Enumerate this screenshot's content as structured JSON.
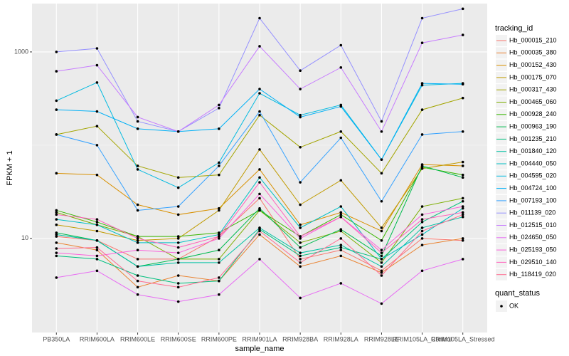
{
  "chart_data": {
    "type": "line",
    "x_label": "sample_name",
    "y_label": "FPKM + 1",
    "log_y": true,
    "grid": true,
    "ylim": [
      0.98,
      3300
    ],
    "yticks": [
      10,
      1000
    ],
    "minor_yticks": [
      100
    ],
    "legend_title": "tracking_id",
    "point_legend_title": "quant_status",
    "point_legend_label": "OK",
    "point_color": "#000000",
    "categories": [
      "PB350LA",
      "RRIM600LA",
      "RRIM600LE",
      "RRIM600SE",
      "RRIM600PE",
      "RRIM901LA",
      "RRIM928BA",
      "RRIM928LA",
      "RRIM928LE",
      "RRIM105LA_Control",
      "RRIM105LA_Stressed"
    ],
    "series": [
      {
        "name": "Hb_000015_210",
        "color": "#F8766D",
        "values": [
          10.5,
          9.5,
          6,
          6,
          10.5,
          27,
          6,
          7.5,
          4.5,
          10,
          9.5
        ]
      },
      {
        "name": "Hb_000035_380",
        "color": "#EA8331",
        "values": [
          9,
          7.5,
          3,
          4,
          3.5,
          11,
          5,
          6.5,
          4.3,
          8.5,
          10
        ]
      },
      {
        "name": "Hb_000152_430",
        "color": "#D89000",
        "values": [
          50,
          48,
          23,
          18,
          21,
          55,
          14,
          19,
          12,
          62,
          60
        ]
      },
      {
        "name": "Hb_000175_070",
        "color": "#C09B00",
        "values": [
          14,
          12,
          9.5,
          10,
          20,
          90,
          23,
          42,
          13,
          56,
          66
        ]
      },
      {
        "name": "Hb_000317_430",
        "color": "#A3A500",
        "values": [
          130,
          160,
          60,
          45,
          48,
          210,
          95,
          140,
          50,
          240,
          320
        ]
      },
      {
        "name": "Hb_000465_060",
        "color": "#7CAE00",
        "values": [
          19,
          14,
          10.5,
          6,
          6,
          20,
          9,
          12,
          5.5,
          22,
          27
        ]
      },
      {
        "name": "Hb_000928_240",
        "color": "#39B600",
        "values": [
          20,
          15,
          10.5,
          10.5,
          11.5,
          20,
          10.5,
          18,
          9.5,
          58,
          48
        ]
      },
      {
        "name": "Hb_000963_190",
        "color": "#00BB4E",
        "values": [
          11.5,
          9.5,
          5,
          6,
          7.5,
          21,
          8,
          12.5,
          6.5,
          60,
          45
        ]
      },
      {
        "name": "Hb_001235_210",
        "color": "#00BF7D",
        "values": [
          6.5,
          6,
          4,
          3.3,
          3.5,
          12.5,
          6.5,
          8,
          6,
          15,
          25
        ]
      },
      {
        "name": "Hb_001840_120",
        "color": "#00C1A3",
        "values": [
          11,
          9.5,
          5,
          5.5,
          5.5,
          13,
          7,
          8.5,
          5,
          13,
          17
        ]
      },
      {
        "name": "Hb_004440_050",
        "color": "#00BFC4",
        "values": [
          16,
          14,
          9,
          9,
          11,
          45,
          13,
          22,
          6,
          11,
          21
        ]
      },
      {
        "name": "Hb_004595_020",
        "color": "#00BAE0",
        "values": [
          300,
          470,
          55,
          35,
          65,
          360,
          210,
          270,
          70,
          440,
          460
        ]
      },
      {
        "name": "Hb_004724_100",
        "color": "#00B0F6",
        "values": [
          240,
          230,
          150,
          140,
          150,
          400,
          200,
          260,
          70,
          460,
          450
        ]
      },
      {
        "name": "Hb_007193_100",
        "color": "#35A2FF",
        "values": [
          130,
          100,
          20,
          22,
          60,
          230,
          40,
          120,
          25,
          130,
          140
        ]
      },
      {
        "name": "Hb_011139_020",
        "color": "#9590FF",
        "values": [
          1000,
          1090,
          180,
          140,
          250,
          2300,
          630,
          1180,
          180,
          2300,
          2900
        ]
      },
      {
        "name": "Hb_012515_010",
        "color": "#C77CFF",
        "values": [
          620,
          720,
          200,
          140,
          270,
          1150,
          400,
          680,
          140,
          1250,
          1520
        ]
      },
      {
        "name": "Hb_024650_050",
        "color": "#E76BF3",
        "values": [
          3.8,
          4.5,
          2.5,
          2.1,
          2.5,
          6,
          2.3,
          3.3,
          2,
          4.5,
          6
        ]
      },
      {
        "name": "Hb_025193_050",
        "color": "#FA62DB",
        "values": [
          7,
          6.5,
          7.5,
          7,
          10,
          30,
          10,
          17,
          7.5,
          18,
          22
        ]
      },
      {
        "name": "Hb_029510_140",
        "color": "#FF62BC",
        "values": [
          18,
          16,
          10,
          8,
          10.5,
          40,
          10.5,
          17,
          7,
          16,
          19
        ]
      },
      {
        "name": "Hb_118419_020",
        "color": "#FF6C91",
        "values": [
          7.8,
          8,
          3.5,
          3,
          3.8,
          12,
          5.5,
          10,
          4,
          12,
          18
        ]
      }
    ]
  }
}
